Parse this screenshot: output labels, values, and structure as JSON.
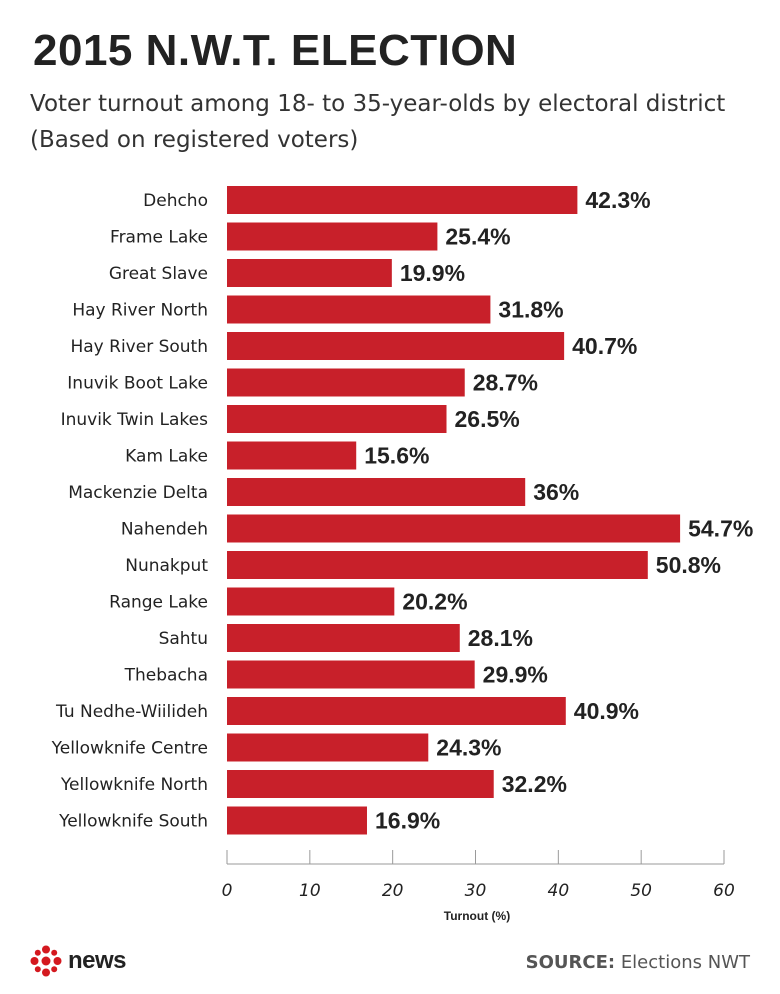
{
  "header": {
    "title": "2015 N.W.T. ELECTION",
    "subtitle": "Voter turnout among 18- to 35-year-olds by electoral district (Based on registered voters)"
  },
  "chart_data": {
    "type": "bar",
    "orientation": "horizontal",
    "categories": [
      "Dehcho",
      "Frame Lake",
      "Great Slave",
      "Hay River North",
      "Hay River South",
      "Inuvik Boot Lake",
      "Inuvik Twin Lakes",
      "Kam Lake",
      "Mackenzie Delta",
      "Nahendeh",
      "Nunakput",
      "Range Lake",
      "Sahtu",
      "Thebacha",
      "Tu Nedhe-Wiilideh",
      "Yellowknife Centre",
      "Yellowknife North",
      "Yellowknife South"
    ],
    "values": [
      42.3,
      25.4,
      19.9,
      31.8,
      40.7,
      28.7,
      26.5,
      15.6,
      36,
      54.7,
      50.8,
      20.2,
      28.1,
      29.9,
      40.9,
      24.3,
      32.2,
      16.9
    ],
    "value_labels": [
      "42.3%",
      "25.4%",
      "19.9%",
      "31.8%",
      "40.7%",
      "28.7%",
      "26.5%",
      "15.6%",
      "36%",
      "54.7%",
      "50.8%",
      "20.2%",
      "28.1%",
      "29.9%",
      "40.9%",
      "24.3%",
      "32.2%",
      "16.9%"
    ],
    "xlabel": "Turnout (%)",
    "ylabel": "",
    "xlim": [
      0,
      60
    ],
    "xticks": [
      "0",
      "10",
      "20",
      "30",
      "40",
      "50",
      "60"
    ],
    "grid": false,
    "bar_color": "#c8202a"
  },
  "footer": {
    "logo_text": "news",
    "source_label": "SOURCE:",
    "source_text": "Elections NWT"
  }
}
